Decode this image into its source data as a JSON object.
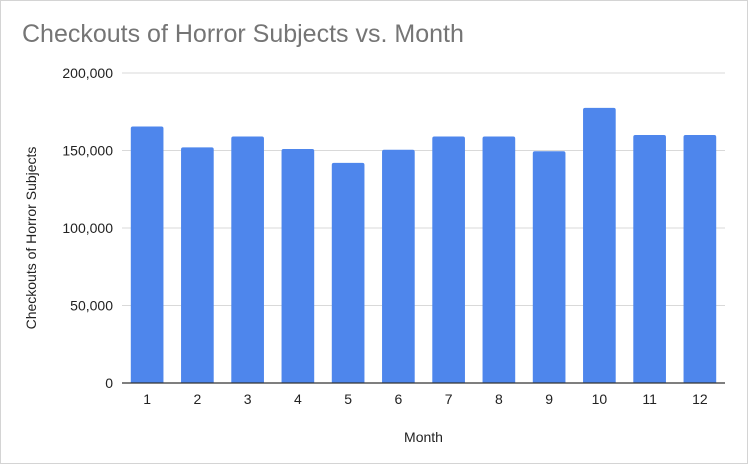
{
  "chart_data": {
    "type": "bar",
    "title": "Checkouts of Horror Subjects vs. Month",
    "xlabel": "Month",
    "ylabel": "Checkouts of Horror Subjects",
    "categories": [
      "1",
      "2",
      "3",
      "4",
      "5",
      "6",
      "7",
      "8",
      "9",
      "10",
      "11",
      "12"
    ],
    "values": [
      165500,
      152000,
      159000,
      151000,
      142000,
      150500,
      159000,
      159000,
      149500,
      177500,
      160000,
      160000
    ],
    "ylim": [
      0,
      200000
    ],
    "yticks": [
      0,
      50000,
      100000,
      150000,
      200000
    ],
    "ytick_labels": [
      "0",
      "50,000",
      "100,000",
      "150,000",
      "200,000"
    ],
    "grid": true,
    "legend": "none",
    "bar_color": "#4e86ec",
    "grid_color": "#d9d9d9",
    "axis_color": "#333333"
  }
}
